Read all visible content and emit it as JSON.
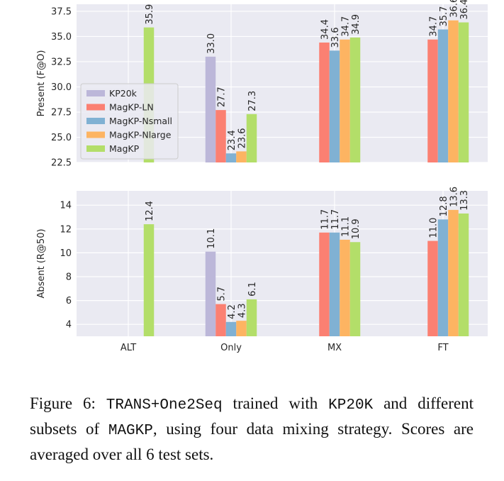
{
  "chart_data": [
    {
      "type": "bar",
      "ylabel": "Present (F@O)",
      "ylim": [
        22.5,
        38.2
      ],
      "yticks": [
        22.5,
        25.0,
        27.5,
        30.0,
        32.5,
        35.0,
        37.5
      ],
      "yticklabels": [
        "22.5",
        "25.0",
        "27.5",
        "30.0",
        "32.5",
        "35.0",
        "37.5"
      ],
      "grid": true,
      "legend_position": "center-left",
      "categories": [
        "ALT",
        "Only",
        "MX",
        "FT"
      ],
      "series": [
        {
          "name": "KP20k",
          "color": "#bcb7d9",
          "values": [
            null,
            33.0,
            null,
            null
          ],
          "labels": [
            "",
            "33.0",
            "",
            ""
          ]
        },
        {
          "name": "MagKP-LN",
          "color": "#fb8072",
          "values": [
            null,
            27.7,
            34.4,
            34.7
          ],
          "labels": [
            "",
            "27.7",
            "34.4",
            "34.7"
          ]
        },
        {
          "name": "MagKP-Nsmall",
          "color": "#80b1d3",
          "values": [
            null,
            23.4,
            33.6,
            35.7
          ],
          "labels": [
            "",
            "23.4",
            "33.6",
            "35.7"
          ]
        },
        {
          "name": "MagKP-Nlarge",
          "color": "#fdb462",
          "values": [
            null,
            23.6,
            34.7,
            36.6
          ],
          "labels": [
            "",
            "23.6",
            "34.7",
            "36.6"
          ]
        },
        {
          "name": "MagKP",
          "color": "#b3de69",
          "values": [
            35.9,
            27.3,
            34.9,
            36.4
          ],
          "labels": [
            "35.9",
            "27.3",
            "34.9",
            "36.4"
          ]
        }
      ]
    },
    {
      "type": "bar",
      "ylabel": "Absent (R@50)",
      "ylim": [
        3.0,
        15.2
      ],
      "yticks": [
        4,
        6,
        8,
        10,
        12,
        14
      ],
      "yticklabels": [
        "4",
        "6",
        "8",
        "10",
        "12",
        "14"
      ],
      "grid": true,
      "categories": [
        "ALT",
        "Only",
        "MX",
        "FT"
      ],
      "xticklabels": [
        "ALT",
        "Only",
        "MX",
        "FT"
      ],
      "series": [
        {
          "name": "KP20k",
          "color": "#bcb7d9",
          "values": [
            null,
            10.1,
            null,
            null
          ],
          "labels": [
            "",
            "10.1",
            "",
            ""
          ]
        },
        {
          "name": "MagKP-LN",
          "color": "#fb8072",
          "values": [
            null,
            5.7,
            11.7,
            11.0
          ],
          "labels": [
            "",
            "5.7",
            "11.7",
            "11.0"
          ]
        },
        {
          "name": "MagKP-Nsmall",
          "color": "#80b1d3",
          "values": [
            null,
            4.2,
            11.7,
            12.8
          ],
          "labels": [
            "",
            "4.2",
            "11.7",
            "12.8"
          ]
        },
        {
          "name": "MagKP-Nlarge",
          "color": "#fdb462",
          "values": [
            null,
            4.3,
            11.1,
            13.6
          ],
          "labels": [
            "",
            "4.3",
            "11.1",
            "13.6"
          ]
        },
        {
          "name": "MagKP",
          "color": "#b3de69",
          "values": [
            12.4,
            6.1,
            10.9,
            13.3
          ],
          "labels": [
            "12.4",
            "6.1",
            "10.9",
            "13.3"
          ]
        }
      ]
    }
  ],
  "caption": {
    "prefix": "Figure 6: ",
    "model": "TRANS+One2Seq",
    "mid1": " trained with ",
    "kp20k": "KP20K",
    "mid2": " and different subsets of ",
    "magkp": "MAGKP",
    "rest": ", using four data mixing strategy. Scores are averaged over all 6 test sets."
  }
}
